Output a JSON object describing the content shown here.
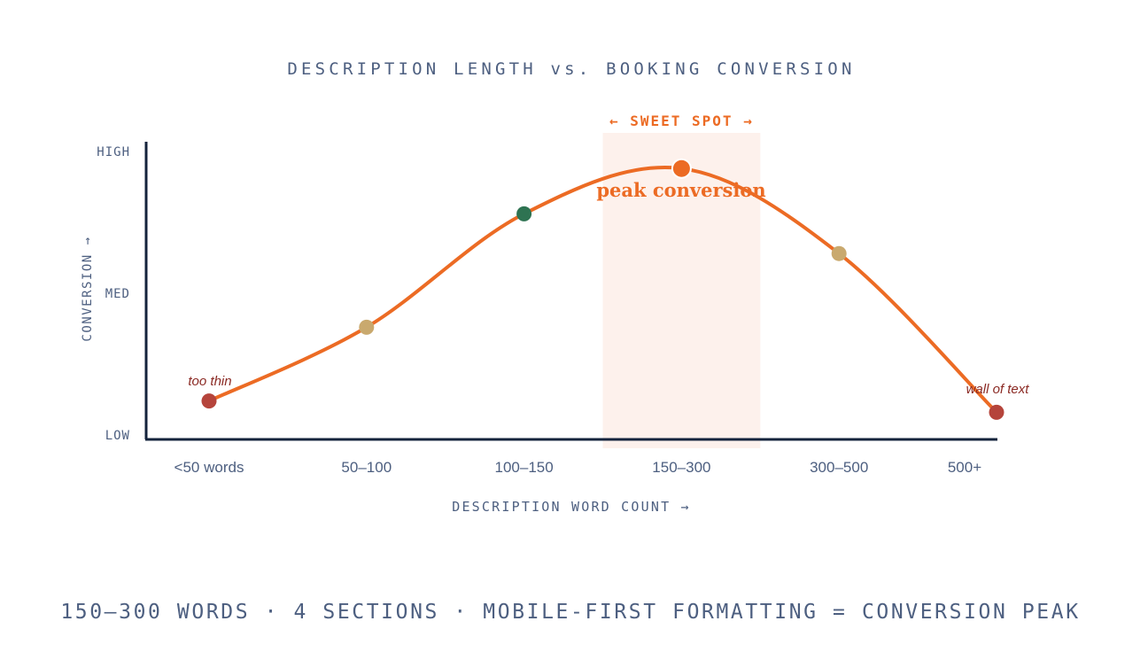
{
  "chart_data": {
    "type": "line",
    "title": "DESCRIPTION LENGTH vs. BOOKING CONVERSION",
    "xlabel": "DESCRIPTION WORD COUNT →",
    "ylabel": "CONVERSION →",
    "categories": [
      "<50 words",
      "50–100",
      "100–150",
      "150–300",
      "300–500",
      "500+"
    ],
    "y_ticks": [
      "HIGH",
      "MED",
      "LOW"
    ],
    "ylim": [
      0,
      1
    ],
    "values": [
      0.12,
      0.38,
      0.78,
      0.94,
      0.64,
      0.08
    ],
    "point_colors": [
      "#b5443b",
      "#c9a96e",
      "#2e7352",
      "#ec6b24",
      "#c9a96e",
      "#b5443b"
    ],
    "line_color": "#ec6b24",
    "highlight": {
      "category": "150–300",
      "label": "← SWEET SPOT →",
      "color": "#fdf1ec"
    },
    "annotations": [
      {
        "category": "<50 words",
        "text": "too thin"
      },
      {
        "category": "150–300",
        "text": "peak conversion"
      },
      {
        "category": "500+",
        "text": "wall of text"
      }
    ],
    "grid": false,
    "legend": "none"
  },
  "footer": "150–300 WORDS · 4 SECTIONS · MOBILE-FIRST FORMATTING = CONVERSION PEAK",
  "colors": {
    "axis": "#14233c",
    "text": "#4d5f80",
    "accent": "#ec6b24",
    "annotation": "#8b2a24"
  }
}
